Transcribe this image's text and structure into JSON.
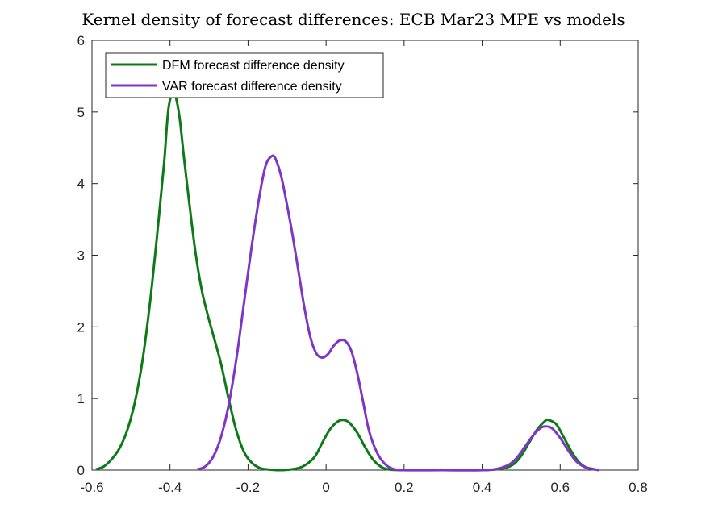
{
  "chart_data": {
    "type": "line",
    "title": "Kernel density of forecast differences: ECB Mar23 MPE vs models",
    "xlabel": "",
    "ylabel": "",
    "xlim": [
      -0.6,
      0.8
    ],
    "ylim": [
      0,
      6
    ],
    "xticks": [
      -0.6,
      -0.4,
      -0.2,
      0,
      0.2,
      0.4,
      0.6,
      0.8
    ],
    "xtick_labels": [
      "-0.6",
      "-0.4",
      "-0.2",
      "0",
      "0.2",
      "0.4",
      "0.6",
      "0.8"
    ],
    "yticks": [
      0,
      1,
      2,
      3,
      4,
      5,
      6
    ],
    "ytick_labels": [
      "0",
      "1",
      "2",
      "3",
      "4",
      "5",
      "6"
    ],
    "grid": false,
    "box": true,
    "legend_position": "top-left",
    "series": [
      {
        "name": "DFM forecast difference density",
        "color": "#0e7a17",
        "points": [
          [
            -0.59,
            0.01
          ],
          [
            -0.57,
            0.05
          ],
          [
            -0.55,
            0.15
          ],
          [
            -0.53,
            0.3
          ],
          [
            -0.51,
            0.55
          ],
          [
            -0.49,
            0.95
          ],
          [
            -0.47,
            1.55
          ],
          [
            -0.45,
            2.4
          ],
          [
            -0.43,
            3.45
          ],
          [
            -0.415,
            4.3
          ],
          [
            -0.405,
            5.0
          ],
          [
            -0.395,
            5.25
          ],
          [
            -0.385,
            5.2
          ],
          [
            -0.375,
            4.9
          ],
          [
            -0.365,
            4.4
          ],
          [
            -0.35,
            3.7
          ],
          [
            -0.335,
            3.05
          ],
          [
            -0.32,
            2.55
          ],
          [
            -0.305,
            2.2
          ],
          [
            -0.29,
            1.9
          ],
          [
            -0.27,
            1.5
          ],
          [
            -0.25,
            1.0
          ],
          [
            -0.23,
            0.55
          ],
          [
            -0.21,
            0.25
          ],
          [
            -0.19,
            0.1
          ],
          [
            -0.17,
            0.03
          ],
          [
            -0.15,
            0.01
          ],
          [
            -0.12,
            0.0
          ],
          [
            -0.09,
            0.01
          ],
          [
            -0.06,
            0.05
          ],
          [
            -0.03,
            0.18
          ],
          [
            -0.01,
            0.38
          ],
          [
            0.01,
            0.57
          ],
          [
            0.03,
            0.68
          ],
          [
            0.045,
            0.7
          ],
          [
            0.06,
            0.66
          ],
          [
            0.08,
            0.52
          ],
          [
            0.1,
            0.32
          ],
          [
            0.12,
            0.15
          ],
          [
            0.14,
            0.05
          ],
          [
            0.16,
            0.01
          ],
          [
            0.2,
            0.0
          ],
          [
            0.3,
            0.0
          ],
          [
            0.4,
            0.0
          ],
          [
            0.45,
            0.02
          ],
          [
            0.48,
            0.08
          ],
          [
            0.5,
            0.2
          ],
          [
            0.52,
            0.38
          ],
          [
            0.54,
            0.56
          ],
          [
            0.56,
            0.68
          ],
          [
            0.57,
            0.7
          ],
          [
            0.59,
            0.64
          ],
          [
            0.61,
            0.45
          ],
          [
            0.63,
            0.25
          ],
          [
            0.65,
            0.1
          ],
          [
            0.67,
            0.03
          ],
          [
            0.7,
            0.0
          ]
        ]
      },
      {
        "name": "VAR forecast difference density",
        "color": "#7e36c8",
        "points": [
          [
            -0.33,
            0.01
          ],
          [
            -0.31,
            0.05
          ],
          [
            -0.29,
            0.18
          ],
          [
            -0.27,
            0.45
          ],
          [
            -0.25,
            0.9
          ],
          [
            -0.23,
            1.55
          ],
          [
            -0.21,
            2.35
          ],
          [
            -0.19,
            3.15
          ],
          [
            -0.17,
            3.85
          ],
          [
            -0.155,
            4.25
          ],
          [
            -0.14,
            4.38
          ],
          [
            -0.13,
            4.35
          ],
          [
            -0.115,
            4.1
          ],
          [
            -0.1,
            3.7
          ],
          [
            -0.085,
            3.25
          ],
          [
            -0.07,
            2.75
          ],
          [
            -0.055,
            2.25
          ],
          [
            -0.04,
            1.85
          ],
          [
            -0.025,
            1.63
          ],
          [
            -0.01,
            1.57
          ],
          [
            0.005,
            1.62
          ],
          [
            0.02,
            1.74
          ],
          [
            0.035,
            1.81
          ],
          [
            0.05,
            1.8
          ],
          [
            0.065,
            1.66
          ],
          [
            0.08,
            1.35
          ],
          [
            0.095,
            0.95
          ],
          [
            0.11,
            0.55
          ],
          [
            0.13,
            0.25
          ],
          [
            0.15,
            0.09
          ],
          [
            0.17,
            0.02
          ],
          [
            0.2,
            0.0
          ],
          [
            0.3,
            0.0
          ],
          [
            0.4,
            0.0
          ],
          [
            0.44,
            0.02
          ],
          [
            0.47,
            0.08
          ],
          [
            0.49,
            0.18
          ],
          [
            0.51,
            0.33
          ],
          [
            0.53,
            0.48
          ],
          [
            0.55,
            0.59
          ],
          [
            0.565,
            0.61
          ],
          [
            0.58,
            0.58
          ],
          [
            0.6,
            0.45
          ],
          [
            0.62,
            0.28
          ],
          [
            0.64,
            0.13
          ],
          [
            0.66,
            0.05
          ],
          [
            0.68,
            0.02
          ],
          [
            0.7,
            0.0
          ]
        ]
      }
    ]
  }
}
